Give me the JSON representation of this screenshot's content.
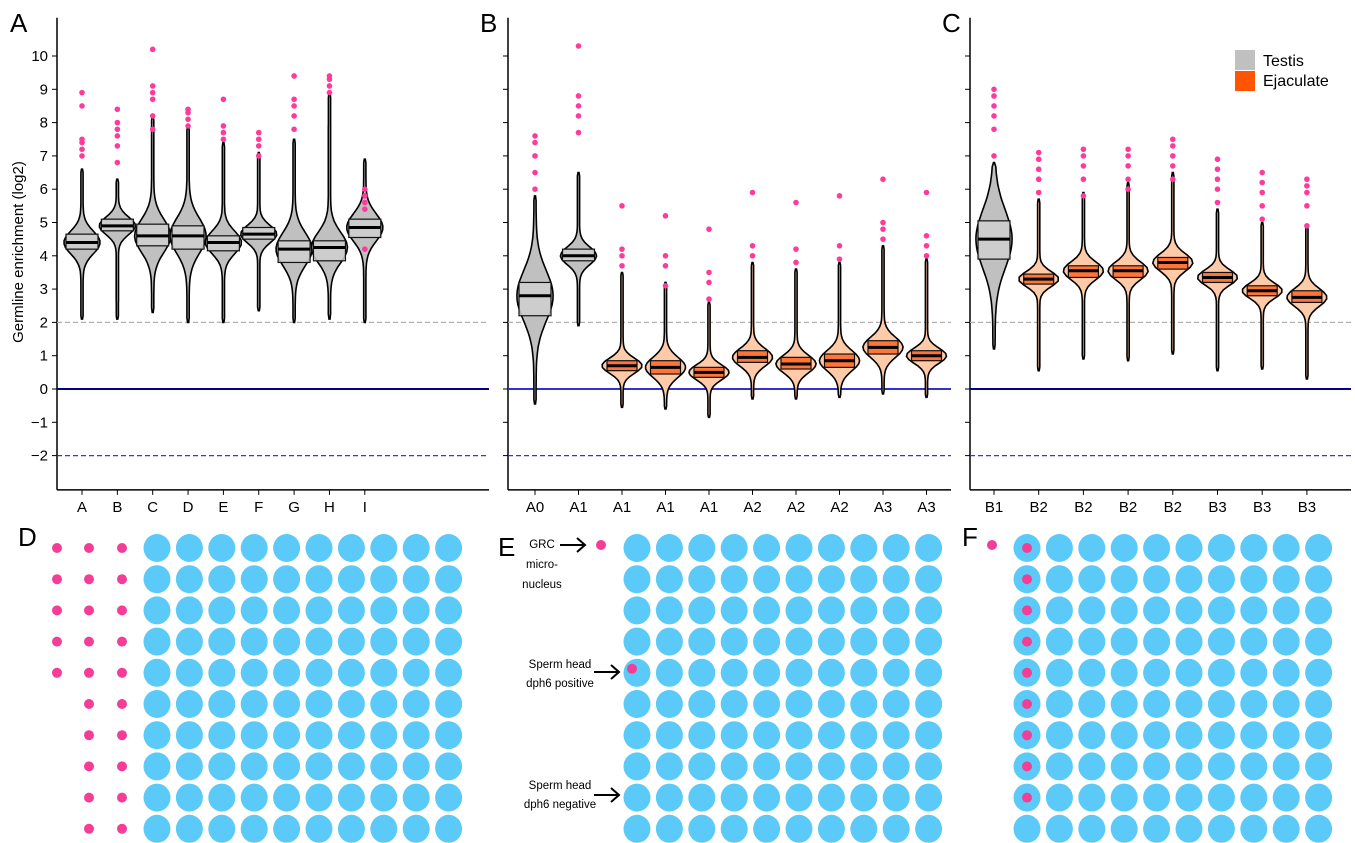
{
  "chart_data": [
    {
      "panel": "A",
      "type": "violin",
      "ylabel": "Germline enrichment (log2)",
      "ylim": [
        -3,
        11
      ],
      "yticks": [
        -2,
        -1,
        0,
        1,
        2,
        3,
        4,
        5,
        6,
        7,
        8,
        9,
        10
      ],
      "reference_lines": [
        {
          "y": 0,
          "style": "solid",
          "color": "#00008b"
        },
        {
          "y": 2,
          "style": "dashed",
          "color": "#b0b0b0"
        },
        {
          "y": -2,
          "style": "dashed",
          "color": "#3333dd"
        }
      ],
      "categories": [
        "A",
        "B",
        "C",
        "D",
        "E",
        "F",
        "G",
        "H",
        "I"
      ],
      "groups": [
        "Testis",
        "Testis",
        "Testis",
        "Testis",
        "Testis",
        "Testis",
        "Testis",
        "Testis",
        "Testis"
      ],
      "medians": [
        4.4,
        4.9,
        4.6,
        4.6,
        4.4,
        4.65,
        4.2,
        4.25,
        4.85
      ],
      "q1": [
        4.2,
        4.75,
        4.3,
        4.2,
        4.15,
        4.5,
        3.8,
        3.85,
        4.55
      ],
      "q3": [
        4.65,
        5.1,
        4.95,
        4.9,
        4.6,
        4.85,
        4.45,
        4.45,
        5.1
      ],
      "min": [
        2.1,
        2.1,
        2.3,
        2.0,
        2.0,
        2.35,
        2.0,
        2.1,
        2.0
      ],
      "max": [
        6.6,
        6.3,
        8.2,
        7.9,
        7.4,
        7.1,
        7.5,
        8.9,
        6.9
      ],
      "outliers": [
        [
          7.0,
          7.2,
          7.4,
          7.5,
          8.5,
          8.9
        ],
        [
          6.8,
          7.3,
          7.6,
          7.8,
          8.0,
          8.4
        ],
        [
          7.8,
          8.2,
          8.7,
          8.9,
          9.1,
          10.2
        ],
        [
          7.9,
          8.1,
          8.3,
          8.4
        ],
        [
          7.5,
          7.7,
          7.9,
          8.7
        ],
        [
          7.0,
          7.3,
          7.5,
          7.7
        ],
        [
          7.8,
          8.2,
          8.5,
          8.7,
          9.4
        ],
        [
          8.9,
          9.1,
          9.3,
          9.4
        ],
        [
          4.2,
          5.4,
          5.6,
          5.8,
          6.0
        ]
      ]
    },
    {
      "panel": "B",
      "type": "violin",
      "ylim": [
        -3,
        11
      ],
      "reference_lines": [
        {
          "y": 0,
          "style": "solid",
          "color": "#3333cc"
        },
        {
          "y": 2,
          "style": "dashed",
          "color": "#b0b0b0"
        },
        {
          "y": -2,
          "style": "dashed",
          "color": "#3333dd"
        }
      ],
      "categories": [
        "A0",
        "A1",
        "A1",
        "A1",
        "A1",
        "A2",
        "A2",
        "A2",
        "A3",
        "A3"
      ],
      "groups": [
        "Testis",
        "Testis",
        "Ejaculate",
        "Ejaculate",
        "Ejaculate",
        "Ejaculate",
        "Ejaculate",
        "Ejaculate",
        "Ejaculate",
        "Ejaculate"
      ],
      "medians": [
        2.8,
        4.0,
        0.7,
        0.65,
        0.5,
        0.95,
        0.75,
        0.85,
        1.25,
        1.0
      ],
      "q1": [
        2.2,
        3.85,
        0.55,
        0.45,
        0.35,
        0.8,
        0.6,
        0.65,
        1.05,
        0.85
      ],
      "q3": [
        3.2,
        4.2,
        0.85,
        0.85,
        0.65,
        1.15,
        0.95,
        1.05,
        1.45,
        1.15
      ],
      "min": [
        -0.45,
        1.9,
        -0.55,
        -0.6,
        -0.85,
        -0.3,
        -0.3,
        -0.25,
        -0.15,
        -0.25
      ],
      "max": [
        5.8,
        6.5,
        3.5,
        3.2,
        2.6,
        3.8,
        3.6,
        3.8,
        4.3,
        3.9
      ],
      "outliers": [
        [
          6.0,
          6.5,
          7.0,
          7.4,
          7.6
        ],
        [
          7.7,
          8.2,
          8.5,
          8.8,
          10.3
        ],
        [
          3.7,
          4.0,
          4.2,
          5.5
        ],
        [
          3.1,
          3.7,
          4.0,
          5.2
        ],
        [
          2.7,
          3.2,
          3.5,
          4.8
        ],
        [
          4.0,
          4.3,
          5.9
        ],
        [
          3.8,
          4.2,
          5.6
        ],
        [
          3.9,
          4.3,
          5.8
        ],
        [
          4.5,
          4.8,
          5.0,
          6.3
        ],
        [
          4.0,
          4.3,
          4.6,
          5.9
        ]
      ]
    },
    {
      "panel": "C",
      "type": "violin",
      "ylim": [
        -3,
        11
      ],
      "reference_lines": [
        {
          "y": 0,
          "style": "solid",
          "color": "#00008b"
        },
        {
          "y": 2,
          "style": "dashed",
          "color": "#b0b0b0"
        },
        {
          "y": -2,
          "style": "dashed",
          "color": "#3333dd"
        }
      ],
      "categories": [
        "B1",
        "B2",
        "B2",
        "B2",
        "B2",
        "B3",
        "B3",
        "B3"
      ],
      "groups": [
        "Testis",
        "Ejaculate",
        "Ejaculate",
        "Ejaculate",
        "Ejaculate",
        "Ejaculate",
        "Ejaculate",
        "Ejaculate"
      ],
      "medians": [
        4.5,
        3.3,
        3.55,
        3.55,
        3.8,
        3.35,
        2.95,
        2.75
      ],
      "q1": [
        3.9,
        3.15,
        3.35,
        3.35,
        3.6,
        3.2,
        2.8,
        2.6
      ],
      "q3": [
        5.05,
        3.45,
        3.7,
        3.7,
        3.95,
        3.5,
        3.1,
        2.95
      ],
      "min": [
        1.2,
        0.55,
        0.9,
        0.85,
        1.05,
        0.55,
        0.6,
        0.3
      ],
      "max": [
        6.8,
        5.7,
        5.9,
        6.2,
        6.5,
        5.4,
        5.0,
        4.9
      ],
      "outliers": [
        [
          7.0,
          7.8,
          8.2,
          8.5,
          8.8,
          9.0
        ],
        [
          5.9,
          6.3,
          6.6,
          6.9,
          7.1
        ],
        [
          5.8,
          6.3,
          6.7,
          7.0,
          7.2
        ],
        [
          6.0,
          6.3,
          6.7,
          7.0,
          7.2
        ],
        [
          6.3,
          6.7,
          7.0,
          7.3,
          7.5
        ],
        [
          5.6,
          6.0,
          6.3,
          6.6,
          6.9
        ],
        [
          5.1,
          5.5,
          5.9,
          6.2,
          6.5
        ],
        [
          4.9,
          5.5,
          5.9,
          6.1,
          6.3
        ]
      ]
    }
  ],
  "panels": {
    "A": "A",
    "B": "B",
    "C": "C",
    "D": "D",
    "E": "E",
    "F": "F"
  },
  "legend": {
    "items": [
      {
        "label": "Testis",
        "color": "#c0c0c0"
      },
      {
        "label": "Ejaculate",
        "color": "#ff5500"
      }
    ],
    "placement": "top-right"
  },
  "colors": {
    "violin_testis": "#c0c0c0",
    "violin_ejaculate": "#ffcaa8",
    "box_testis": "#cfcfcf",
    "box_ejaculate": "#ff6a2a",
    "outlier": "#ff3a9a",
    "cell": "#5bcaf8",
    "grc": "#f33d96"
  },
  "schematics": {
    "D": {
      "rows": 10,
      "cols": 10,
      "grc_columns": [
        {
          "rows": [
            1,
            2,
            3,
            4,
            5
          ]
        },
        {
          "rows": [
            1,
            2,
            3,
            4,
            5,
            6,
            7,
            8,
            9,
            10
          ]
        },
        {
          "rows": [
            1,
            2,
            3,
            4,
            5,
            6,
            7,
            8,
            9,
            10
          ]
        }
      ],
      "grc_inside_count": 0
    },
    "E": {
      "rows": 10,
      "cols": 10,
      "grc_outside_rows": [
        1
      ],
      "grc_inside_rows_first_col": [
        5
      ],
      "annotations": [
        {
          "text": [
            "GRC",
            "micro-",
            "nucleus"
          ]
        },
        {
          "text": [
            "Sperm head",
            "dph6 positive"
          ]
        },
        {
          "text": [
            "Sperm head",
            "dph6 negative"
          ]
        }
      ]
    },
    "F": {
      "rows": 10,
      "cols": 10,
      "grc_outside_rows": [
        1
      ],
      "grc_inside_rows_first_col": [
        1,
        2,
        3,
        4,
        5,
        6,
        7,
        8,
        9
      ]
    }
  }
}
